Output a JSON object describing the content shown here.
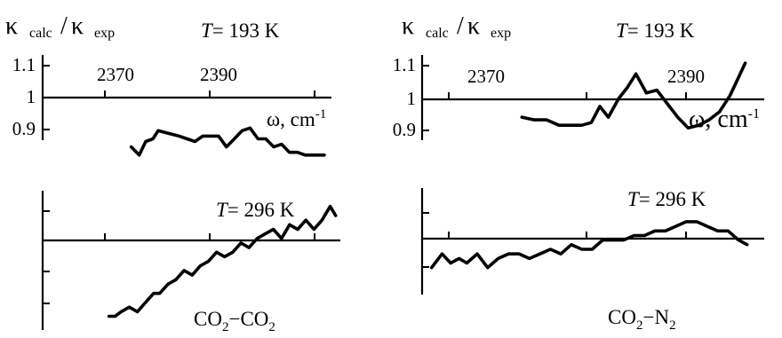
{
  "figure": {
    "kappa_symbol": "κ",
    "calc_sub": "calc",
    "exp_sub": "exp",
    "slash": "/",
    "t_symbol": "T",
    "omega_unit_base": "ω, cm",
    "omega_unit_exp": "-1",
    "pair_left": {
      "a": "CO",
      "a_sub": "2",
      "dash": "−",
      "b": "CO",
      "b_sub": "2"
    },
    "pair_right": {
      "a": "CO",
      "a_sub": "2",
      "dash": "−",
      "b": "N",
      "b_sub": "2"
    }
  },
  "chart_data": [
    {
      "type": "line",
      "panel": "top-left",
      "title": "T = 193 K",
      "temperature_label": "= 193 K",
      "ylabel": "κcalc / κexp",
      "xlabel": "ω, cm-1",
      "x_ticks": [
        2370,
        2390
      ],
      "y_ticks": [
        "1.1",
        "1",
        "0.9"
      ],
      "xlim": [
        2360.5,
        2404.5
      ],
      "ylim": [
        0.77,
        1.19
      ],
      "series": [
        {
          "x": [
            2374,
            2375.2,
            2376.2,
            2377.3,
            2378.1,
            2379.7,
            2381.3,
            2382.5,
            2383.7,
            2384.9,
            2386.1,
            2387.3,
            2388.5,
            2389.7,
            2390.9,
            2392.1,
            2393.3,
            2394.5,
            2395.7,
            2396.9,
            2398.1,
            2399.3,
            2400.5,
            2401.7,
            2402.9,
            2403.4
          ],
          "y": [
            0.85,
            0.82,
            0.87,
            0.88,
            0.91,
            0.9,
            0.89,
            0.88,
            0.87,
            0.89,
            0.89,
            0.89,
            0.85,
            0.88,
            0.91,
            0.92,
            0.88,
            0.88,
            0.85,
            0.86,
            0.83,
            0.83,
            0.82,
            0.82,
            0.82,
            0.82
          ]
        }
      ]
    },
    {
      "type": "line",
      "panel": "top-right",
      "title": "T = 193 K",
      "temperature_label": "= 193 K",
      "ylabel": "κcalc / κexp",
      "xlabel": "ω, cm-1",
      "x_ticks": [
        2370,
        2390
      ],
      "y_ticks": [
        "1.1",
        "1",
        "0.9"
      ],
      "xlim": [
        2362.5,
        2398.5
      ],
      "ylim": [
        0.77,
        1.19
      ],
      "series": [
        {
          "x": [
            2373,
            2374.3,
            2375.6,
            2376.9,
            2378.2,
            2379.3,
            2380.3,
            2381.2,
            2382.1,
            2383.2,
            2384.1,
            2385,
            2386.1,
            2387.2,
            2388.3,
            2389.4,
            2390.5,
            2391.6,
            2392.7,
            2393.8,
            2394.9,
            2395.7,
            2396.5
          ],
          "y": [
            0.96,
            0.95,
            0.95,
            0.93,
            0.93,
            0.93,
            0.94,
            1.0,
            0.96,
            1.03,
            1.07,
            1.12,
            1.05,
            1.06,
            1.01,
            0.96,
            0.92,
            0.93,
            0.95,
            0.98,
            1.04,
            1.1,
            1.16
          ]
        }
      ]
    },
    {
      "type": "line",
      "panel": "bottom-left",
      "title": "T = 296 K",
      "temperature_label": "= 296 K",
      "xlim": [
        2360.5,
        2404.5
      ],
      "ylim": [
        -0.22,
        0.09
      ],
      "series": [
        {
          "x": [
            2370.3,
            2371.2,
            2372.1,
            2373.3,
            2374.5,
            2375.7,
            2376.9,
            2377.8,
            2379,
            2380.2,
            2381.4,
            2382.6,
            2383.8,
            2385,
            2386.2,
            2387.4,
            2388.6,
            2389.8,
            2391,
            2392.2,
            2393.4,
            2394.6,
            2395.8,
            2397,
            2398.2,
            2399.4,
            2400.6,
            2401.8,
            2403,
            2403.8
          ],
          "y": [
            -0.19,
            -0.19,
            -0.18,
            -0.17,
            -0.18,
            -0.16,
            -0.14,
            -0.14,
            -0.12,
            -0.11,
            -0.09,
            -0.1,
            -0.08,
            -0.07,
            -0.05,
            -0.06,
            -0.05,
            -0.03,
            -0.04,
            -0.02,
            -0.01,
            0.0,
            -0.02,
            0.01,
            0.0,
            0.02,
            0.0,
            0.02,
            0.05,
            0.03
          ]
        }
      ]
    },
    {
      "type": "line",
      "panel": "bottom-right",
      "title": "T = 296 K",
      "temperature_label": "= 296 K",
      "xlim": [
        2362.5,
        2398.5
      ],
      "ylim": [
        -0.13,
        0.09
      ],
      "series": [
        {
          "x": [
            2363.5,
            2364.6,
            2365.5,
            2366.4,
            2367.2,
            2368.3,
            2369.4,
            2370.5,
            2371.6,
            2372.7,
            2373.8,
            2374.9,
            2376,
            2377.1,
            2378.2,
            2379.3,
            2380.4,
            2381.5,
            2382.6,
            2383.7,
            2384.8,
            2385.9,
            2387,
            2388.1,
            2389.2,
            2390.3,
            2391.4,
            2392.5,
            2393.6,
            2394.7,
            2395.8,
            2396.7
          ],
          "y": [
            -0.06,
            -0.03,
            -0.05,
            -0.04,
            -0.05,
            -0.03,
            -0.06,
            -0.04,
            -0.03,
            -0.03,
            -0.04,
            -0.03,
            -0.02,
            -0.03,
            -0.01,
            -0.02,
            -0.02,
            0.0,
            0.0,
            0.0,
            0.01,
            0.01,
            0.02,
            0.02,
            0.03,
            0.04,
            0.04,
            0.03,
            0.02,
            0.02,
            0.0,
            -0.01
          ]
        }
      ]
    }
  ]
}
